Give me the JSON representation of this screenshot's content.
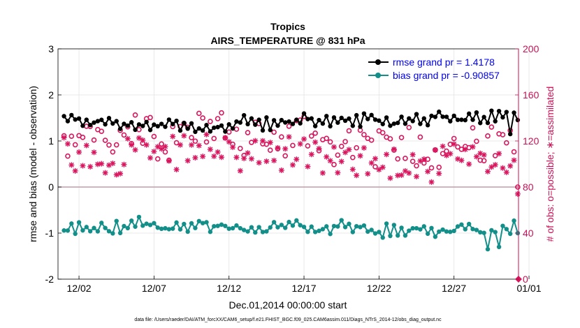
{
  "chart_data": {
    "type": "line",
    "title": "Tropics",
    "subtitle": "AIRS_TEMPERATURE @ 831 hPa",
    "xlabel": "Dec.01,2014 00:00:00 start",
    "ylabel_left": "rmse and bias (model - observation)",
    "ylabel_right": "# of obs: o=possible; ∗=assimilated",
    "x_ticks": [
      "12/02",
      "12/07",
      "12/12",
      "12/17",
      "12/22",
      "12/27",
      "01/01"
    ],
    "y_left_ticks": [
      "-2",
      "-1",
      "0",
      "1",
      "2",
      "3"
    ],
    "y_right_ticks": [
      "0",
      "40",
      "80",
      "120",
      "160",
      "200"
    ],
    "ylim_left": [
      -2,
      3
    ],
    "ylim_right": [
      0,
      200
    ],
    "xlim_days": [
      0.6,
      31.3
    ],
    "legend": [
      "rmse grand pr = 1.4178",
      "bias grand pr = -0.90857"
    ],
    "footer": "data file: /Users/raeder/DAI/ATM_forcXX/CAM6_setup/f.e21.FHIST_BGC.f09_025.CAM6assim.011/Diags_NTrS_2014-12/obs_diag_output.nc",
    "colors": {
      "rmse": "#000000",
      "bias": "#138f8a",
      "obs": "#d9155e",
      "zero_line": "#c79aa5",
      "legend_text": "#0000ee",
      "right_axis": "#cc0f56"
    },
    "time_step_days": 0.25,
    "rmse_anchors": [
      1.45,
      1.48,
      1.4,
      1.42,
      1.35,
      1.3,
      1.35,
      1.42,
      1.3,
      1.28,
      1.3,
      1.35,
      1.45,
      1.38,
      1.35,
      1.4,
      1.5,
      1.45,
      1.4,
      1.42,
      1.45,
      1.45,
      1.4,
      1.5,
      1.48,
      1.52,
      1.48,
      1.45,
      1.5,
      1.55,
      1.5
    ],
    "bias_anchors": [
      -0.95,
      -0.88,
      -0.9,
      -0.92,
      -0.85,
      -0.8,
      -0.85,
      -0.95,
      -0.85,
      -0.8,
      -0.82,
      -0.9,
      -0.88,
      -0.9,
      -0.92,
      -0.88,
      -0.85,
      -0.9,
      -0.88,
      -0.85,
      -0.95,
      -0.95,
      -0.95,
      -0.95,
      -0.9,
      -0.95,
      -0.9,
      -0.85,
      -0.95,
      -0.9,
      -0.85
    ],
    "possible_anchors": [
      120,
      112,
      125,
      110,
      128,
      140,
      118,
      120,
      130,
      128,
      135,
      125,
      120,
      122,
      118,
      125,
      130,
      120,
      115,
      122,
      118,
      112,
      115,
      120,
      110,
      112,
      120,
      118,
      115,
      118,
      112
    ],
    "assimilated_anchors": [
      108,
      100,
      110,
      102,
      108,
      122,
      100,
      108,
      112,
      110,
      118,
      105,
      105,
      108,
      104,
      110,
      112,
      105,
      100,
      106,
      104,
      98,
      102,
      104,
      96,
      100,
      106,
      102,
      98,
      104,
      96
    ]
  }
}
